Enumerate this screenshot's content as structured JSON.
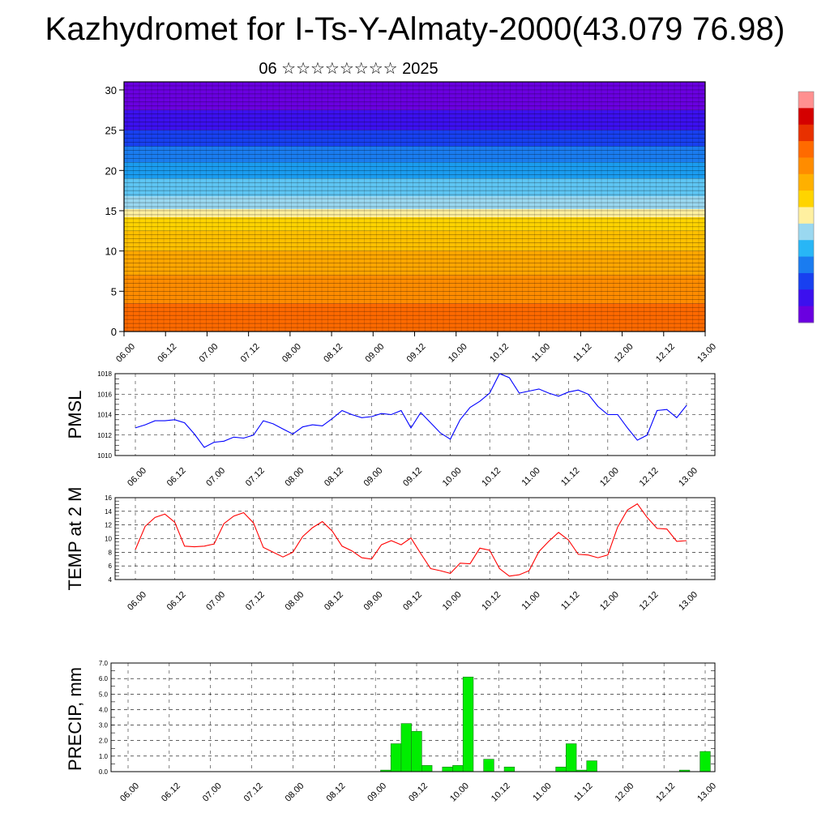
{
  "title": "Kazhydromet for I-Ts-Y-Almaty-2000(43.079 76.98)",
  "subtitle": "06 ☆☆☆☆☆☆☆☆ 2025",
  "time_labels": [
    "06.00",
    "06.12",
    "07.00",
    "07.12",
    "08.00",
    "08.12",
    "09.00",
    "09.12",
    "10.00",
    "10.12",
    "11.00",
    "11.12",
    "12.00",
    "12.12",
    "13.00"
  ],
  "chart_data": [
    {
      "type": "heatmap",
      "name": "vertical cross-section with wind barbs",
      "x": [
        "06.00",
        "06.12",
        "07.00",
        "07.12",
        "08.00",
        "08.12",
        "09.00",
        "09.12",
        "10.00",
        "10.12",
        "11.00",
        "11.12",
        "12.00",
        "12.12",
        "13.00"
      ],
      "ylim": [
        0,
        31
      ],
      "yticks": [
        0,
        5,
        10,
        15,
        20,
        25,
        30
      ],
      "color_scale": [
        "#6a00e0",
        "#3c10ee",
        "#1840f0",
        "#1a7cf0",
        "#28b6f6",
        "#9ad8f0",
        "#fff0a0",
        "#ffd400",
        "#ffb000",
        "#ff8c00",
        "#ff6a00",
        "#e83000",
        "#d40000",
        "#ff9090"
      ],
      "layer_color_bounds_by_time": {
        "blue_top": [
          30,
          30,
          30,
          30,
          30,
          30,
          30,
          30,
          30,
          30,
          30,
          30,
          30,
          30,
          30
        ],
        "blue_to_yellow_boundary": [
          15,
          15,
          15,
          15,
          15,
          15,
          15,
          15,
          14,
          14,
          14,
          14,
          15,
          15,
          15
        ]
      }
    },
    {
      "type": "line",
      "ylabel": "PMSL",
      "ylim": [
        1010,
        1018
      ],
      "yticks": [
        1010,
        1012,
        1014,
        1016,
        1018
      ],
      "grid": true,
      "series": [
        {
          "color": "#0000ff",
          "values": [
            1012.7,
            1013.0,
            1013.4,
            1013.4,
            1013.5,
            1013.2,
            1012.1,
            1010.8,
            1011.3,
            1011.4,
            1011.8,
            1011.7,
            1012.0,
            1013.4,
            1013.1,
            1012.6,
            1012.1,
            1012.8,
            1013.0,
            1012.9,
            1013.6,
            1014.4,
            1014.0,
            1013.7,
            1013.8,
            1014.1,
            1014.0,
            1014.4,
            1012.7,
            1014.2,
            1013.2,
            1012.2,
            1011.6,
            1013.5,
            1014.7,
            1015.3,
            1016.1,
            1018.0,
            1017.6,
            1016.1,
            1016.3,
            1016.5,
            1016.1,
            1015.8,
            1016.2,
            1016.4,
            1016.0,
            1014.8,
            1014.0,
            1014.0,
            1012.7,
            1011.5,
            1012.0,
            1014.4,
            1014.5,
            1013.7,
            1014.9
          ]
        }
      ]
    },
    {
      "type": "line",
      "ylabel": "TEMP at 2 M",
      "ylim": [
        4,
        16
      ],
      "yticks": [
        4,
        6,
        8,
        10,
        12,
        14,
        16
      ],
      "grid": true,
      "series": [
        {
          "color": "#ff0000",
          "values": [
            8.4,
            11.8,
            13.1,
            13.6,
            12.4,
            8.9,
            8.8,
            8.9,
            9.2,
            12.2,
            13.3,
            13.8,
            12.3,
            8.7,
            8.0,
            7.3,
            8.0,
            10.3,
            11.6,
            12.5,
            11.1,
            8.9,
            8.2,
            7.2,
            7.0,
            9.1,
            9.7,
            9.1,
            10.1,
            7.8,
            5.6,
            5.3,
            4.9,
            6.4,
            6.3,
            8.6,
            8.3,
            5.6,
            4.5,
            4.7,
            5.3,
            8.1,
            9.6,
            10.9,
            9.8,
            7.7,
            7.6,
            7.2,
            7.6,
            11.7,
            14.2,
            15.1,
            13.1,
            11.5,
            11.4,
            9.6,
            9.7
          ]
        }
      ]
    },
    {
      "type": "bar",
      "ylabel": "PRECIP, mm",
      "ylim": [
        0,
        7
      ],
      "yticks": [
        "0.0",
        "1.0",
        "2.0",
        "3.0",
        "4.0",
        "5.0",
        "6.0",
        "7.0"
      ],
      "grid": true,
      "bar_color": "#00ee00",
      "values": [
        0,
        0,
        0,
        0,
        0,
        0,
        0,
        0,
        0,
        0,
        0,
        0,
        0,
        0,
        0,
        0,
        0,
        0,
        0,
        0,
        0,
        0,
        0,
        0,
        0,
        0.1,
        1.8,
        3.1,
        2.6,
        0.4,
        0,
        0.3,
        0.4,
        6.1,
        0,
        0.8,
        0,
        0.3,
        0,
        0,
        0,
        0,
        0.3,
        1.8,
        0.1,
        0.7,
        0,
        0,
        0,
        0,
        0,
        0,
        0,
        0,
        0.1,
        0,
        1.3
      ]
    }
  ],
  "colorbar": {
    "colors": [
      "#ff9090",
      "#d40000",
      "#e83000",
      "#ff6a00",
      "#ff8c00",
      "#ffb000",
      "#ffd400",
      "#fff0a0",
      "#9ad8f0",
      "#28b6f6",
      "#1a7cf0",
      "#1840f0",
      "#3c10ee",
      "#6a00e0"
    ]
  }
}
